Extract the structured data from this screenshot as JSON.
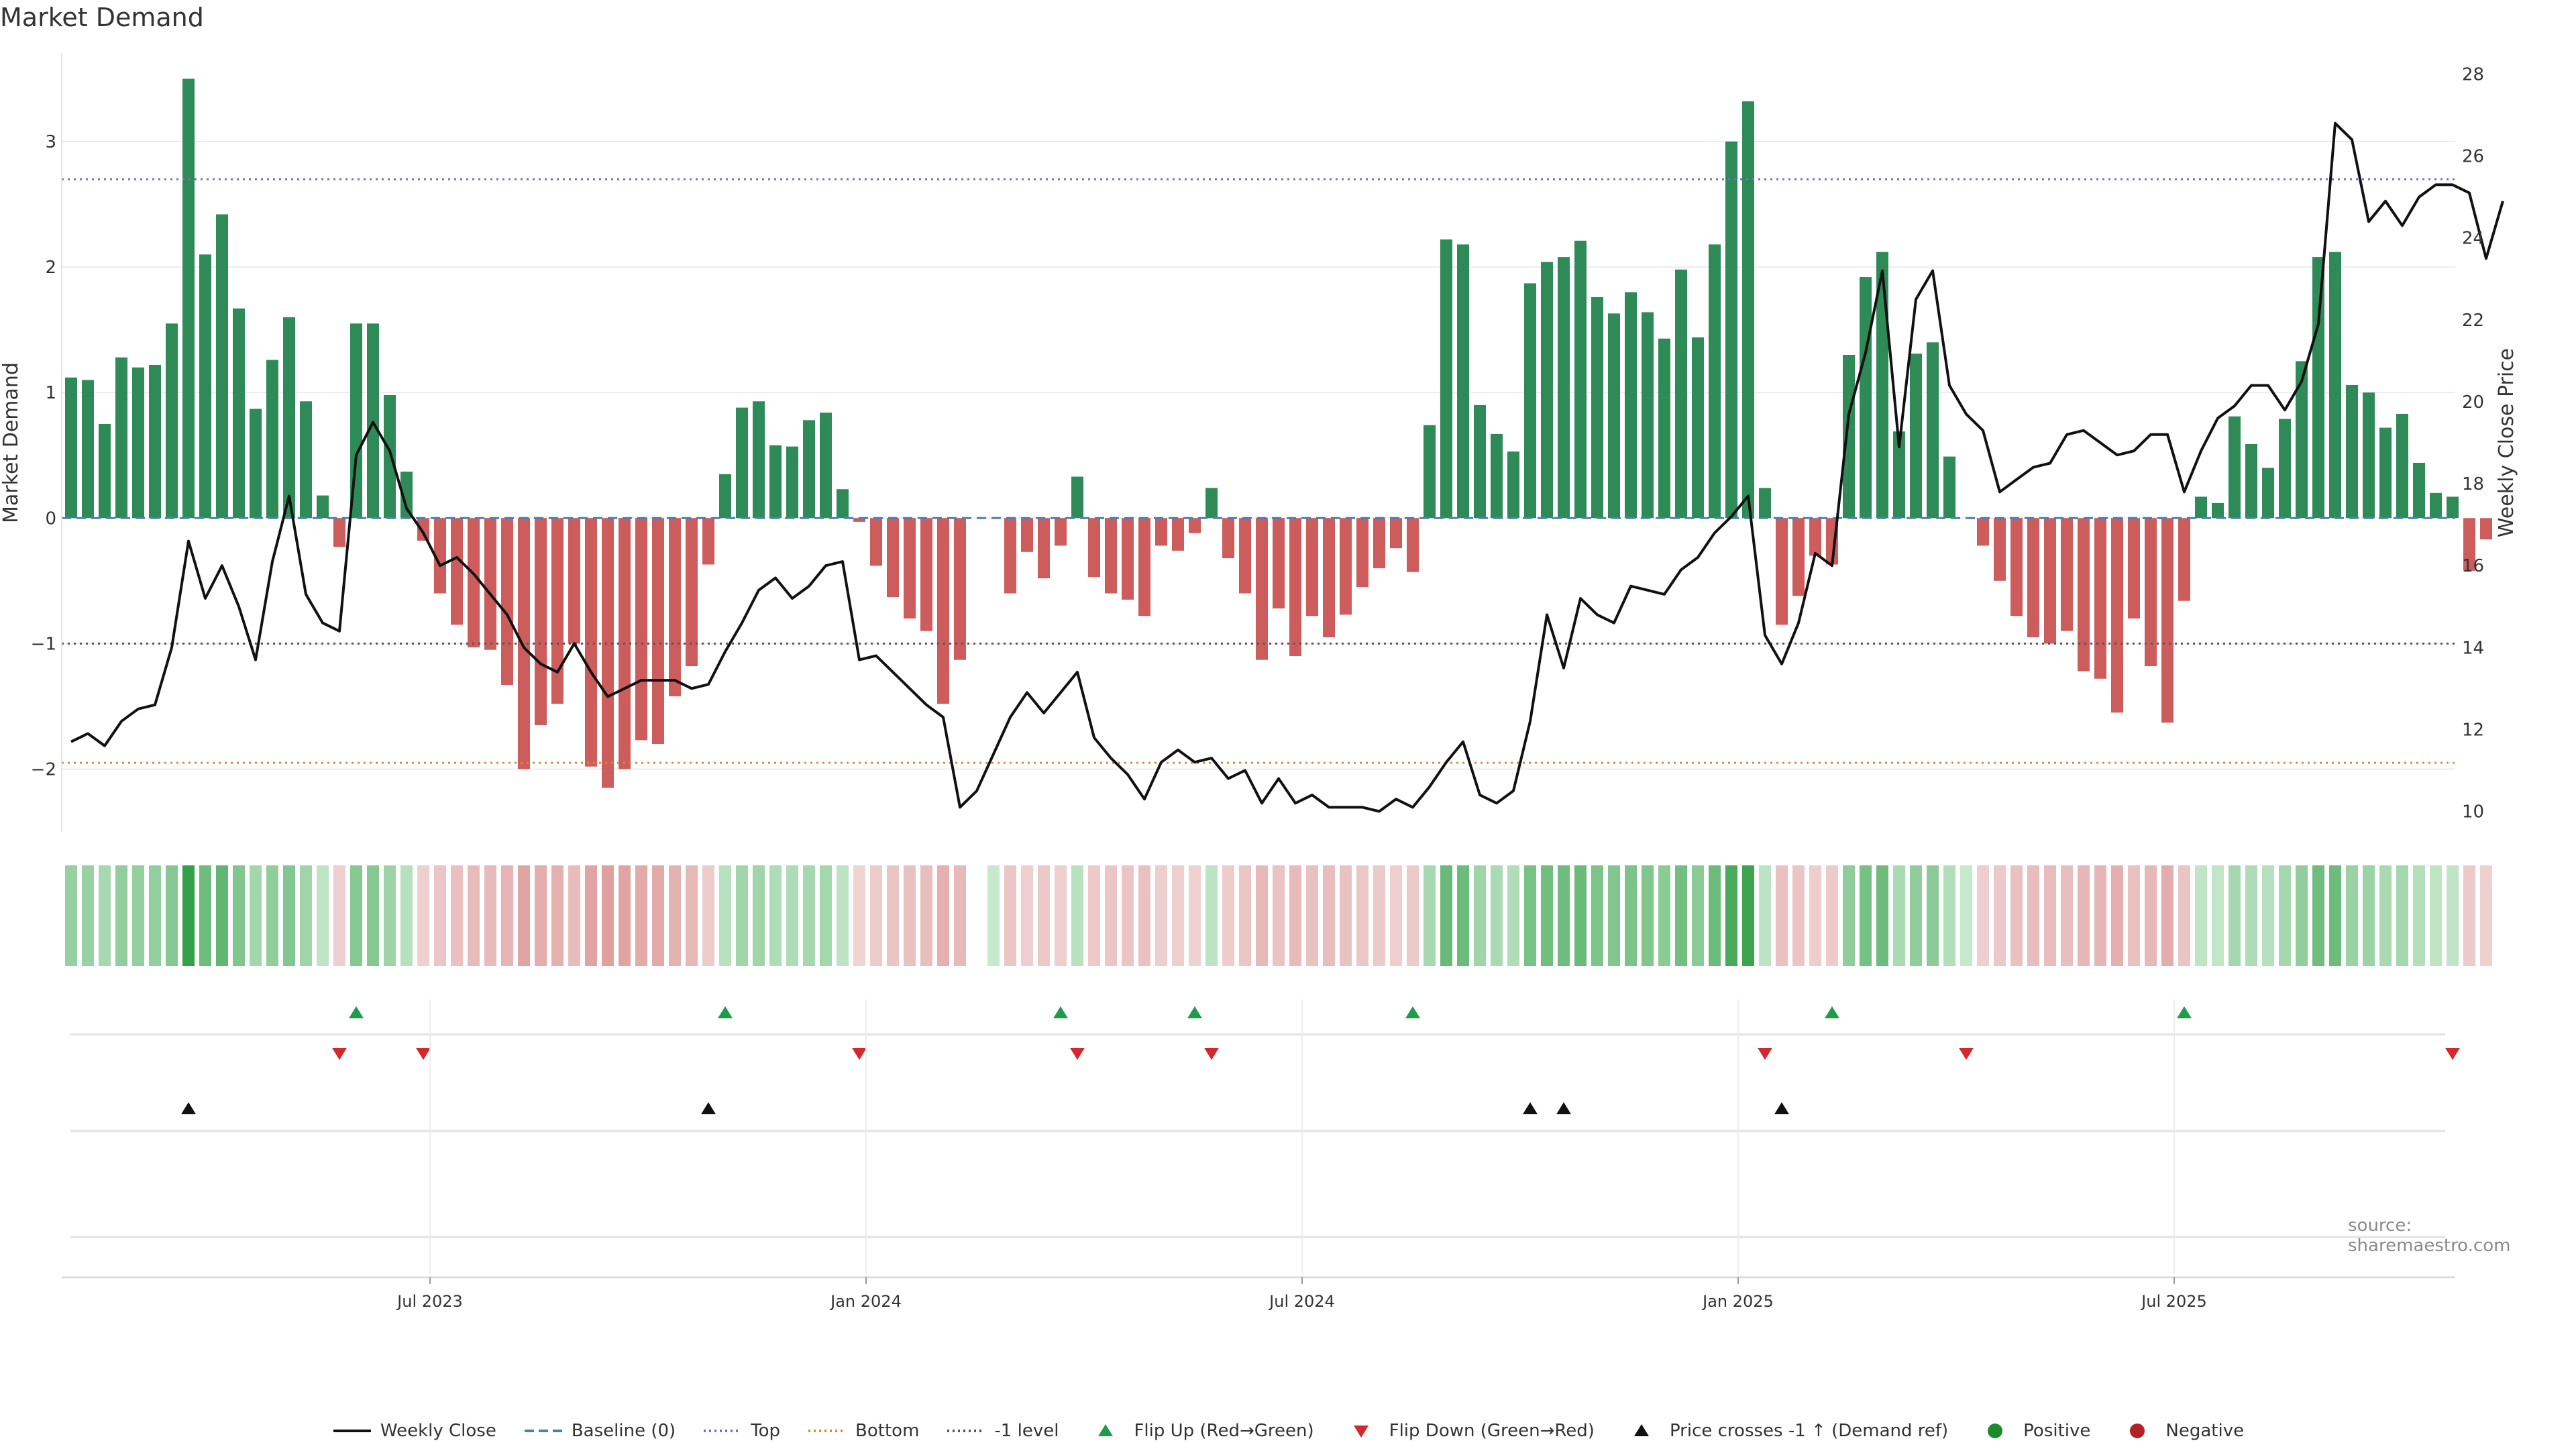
{
  "title": "Market Demand",
  "source_note": "source: sharemaestro.com",
  "chart_data": {
    "type": "bar+line",
    "title": "Market Demand",
    "ylabel_left": "Market Demand",
    "ylabel_right": "Weekly Close Price",
    "ylim_left": [
      -2.5,
      3.7
    ],
    "yticks_left": [
      -2,
      -1,
      0,
      1,
      2,
      3
    ],
    "ylim_right": [
      9.5,
      28.5
    ],
    "yticks_right": [
      10,
      12,
      14,
      16,
      18,
      20,
      22,
      24,
      26,
      28
    ],
    "x_range_weeks": [
      0,
      143
    ],
    "x_ticks": [
      {
        "week": 22,
        "label": "Jul 2023"
      },
      {
        "week": 48,
        "label": "Jan 2024"
      },
      {
        "week": 74,
        "label": "Jul 2024"
      },
      {
        "week": 100,
        "label": "Jan 2025"
      },
      {
        "week": 126,
        "label": "Jul 2025"
      }
    ],
    "levels": {
      "top": 2.7,
      "bottom": -1.95,
      "minus_one": -1,
      "baseline": 0
    },
    "demand": [
      1.12,
      1.1,
      0.75,
      1.28,
      1.2,
      1.22,
      1.55,
      3.5,
      2.1,
      2.42,
      1.67,
      0.87,
      1.26,
      1.6,
      0.93,
      0.18,
      -0.23,
      1.55,
      1.55,
      0.98,
      0.37,
      -0.18,
      -0.6,
      -0.85,
      -1.03,
      -1.05,
      -1.33,
      -2.0,
      -1.65,
      -1.48,
      -1.0,
      -1.98,
      -2.15,
      -2.0,
      -1.77,
      -1.8,
      -1.42,
      -1.18,
      -0.37,
      0.35,
      0.88,
      0.93,
      0.58,
      0.57,
      0.78,
      0.84,
      0.23,
      -0.03,
      -0.38,
      -0.63,
      -0.8,
      -0.9,
      -1.48,
      -1.13,
      0,
      0,
      -0.6,
      -0.27,
      -0.48,
      -0.22,
      0.33,
      -0.47,
      -0.6,
      -0.65,
      -0.78,
      -0.22,
      -0.26,
      -0.12,
      0.24,
      -0.32,
      -0.6,
      -1.13,
      -0.72,
      -1.1,
      -0.78,
      -0.95,
      -0.77,
      -0.55,
      -0.4,
      -0.24,
      -0.43,
      0.74,
      2.22,
      2.18,
      0.9,
      0.67,
      0.53,
      1.87,
      2.04,
      2.08,
      2.21,
      1.76,
      1.63,
      1.8,
      1.64,
      1.43,
      1.98,
      1.44,
      2.18,
      3.0,
      3.32,
      0.24,
      -0.85,
      -0.62,
      -0.3,
      -0.37,
      1.3,
      1.92,
      2.12,
      0.69,
      1.31,
      1.4,
      0.49,
      0,
      -0.22,
      -0.5,
      -0.78,
      -0.95,
      -1.0,
      -0.9,
      -1.22,
      -1.28,
      -1.55,
      -0.8,
      -1.18,
      -1.63,
      -0.66,
      0.17,
      0.12,
      0.81,
      0.59,
      0.4,
      0.79,
      1.25,
      2.08,
      2.12,
      1.06,
      1.0,
      0.72,
      0.83,
      0.44,
      0.2,
      0.17,
      -0.42,
      -0.17
    ],
    "weekly_close": [
      11.7,
      11.9,
      11.6,
      12.2,
      12.5,
      12.6,
      14.0,
      16.6,
      15.2,
      16.0,
      15.0,
      13.7,
      16.1,
      17.7,
      15.3,
      14.6,
      14.4,
      18.7,
      19.5,
      18.8,
      17.4,
      16.8,
      16.0,
      16.2,
      15.8,
      15.3,
      14.8,
      14.0,
      13.6,
      13.4,
      14.1,
      13.4,
      12.8,
      13.0,
      13.2,
      13.2,
      13.2,
      13.0,
      13.1,
      13.9,
      14.6,
      15.4,
      15.7,
      15.2,
      15.5,
      16.0,
      16.1,
      13.7,
      13.8,
      13.4,
      13.0,
      12.6,
      12.3,
      10.1,
      10.5,
      11.4,
      12.3,
      12.9,
      12.4,
      12.9,
      13.4,
      11.8,
      11.3,
      10.9,
      10.3,
      11.2,
      11.5,
      11.2,
      11.3,
      10.8,
      11.0,
      10.2,
      10.8,
      10.2,
      10.4,
      10.1,
      10.1,
      10.1,
      10.0,
      10.3,
      10.1,
      10.6,
      11.2,
      11.7,
      10.4,
      10.2,
      10.5,
      12.2,
      14.8,
      13.5,
      15.2,
      14.8,
      14.6,
      15.5,
      15.4,
      15.3,
      15.9,
      16.2,
      16.8,
      17.2,
      17.7,
      14.3,
      13.6,
      14.6,
      16.3,
      16.0,
      19.7,
      21.2,
      23.2,
      18.9,
      22.5,
      23.2,
      20.4,
      19.7,
      19.3,
      17.8,
      18.1,
      18.4,
      18.5,
      19.2,
      19.3,
      19.0,
      18.7,
      18.8,
      19.2,
      19.2,
      17.8,
      18.8,
      19.6,
      19.9,
      20.4,
      20.4,
      19.8,
      20.5,
      21.9,
      26.8,
      26.4,
      24.4,
      24.9,
      24.3,
      25.0,
      25.3,
      25.3,
      25.1,
      23.5,
      24.9
    ],
    "heat_gap_week": 54,
    "markers": {
      "flip_up_weeks": [
        17,
        39,
        59,
        67,
        80,
        105,
        126
      ],
      "flip_down_weeks": [
        16,
        21,
        47,
        60,
        68,
        101,
        113,
        142
      ],
      "price_cross_weeks": [
        7,
        38,
        87,
        89,
        102
      ],
      "positive_weeks": [],
      "negative_weeks": []
    }
  },
  "legend": [
    {
      "label": "Weekly Close",
      "icon": "solid-line",
      "color": "#111111"
    },
    {
      "label": "Baseline (0)",
      "icon": "dashed-line",
      "color": "#4a7fb5"
    },
    {
      "label": "Top",
      "icon": "dotted-line",
      "color": "#6f6fd0"
    },
    {
      "label": "Bottom",
      "icon": "dotted-line",
      "color": "#e08a2c"
    },
    {
      "label": "-1 level",
      "icon": "dotted-line",
      "color": "#555555"
    },
    {
      "label": "Flip Up (Red→Green)",
      "icon": "triangle-up",
      "color": "#1e9c4b"
    },
    {
      "label": "Flip Down (Green→Red)",
      "icon": "triangle-down",
      "color": "#d3282e"
    },
    {
      "label": "Price crosses -1 ↑ (Demand ref)",
      "icon": "triangle-up",
      "color": "#111111"
    },
    {
      "label": "Positive",
      "icon": "dot",
      "color": "#1e8a2e"
    },
    {
      "label": "Negative",
      "icon": "dot",
      "color": "#b22222"
    }
  ],
  "colors": {
    "positive_bar": "#2e8b57",
    "negative_bar": "#cd5c5c"
  }
}
